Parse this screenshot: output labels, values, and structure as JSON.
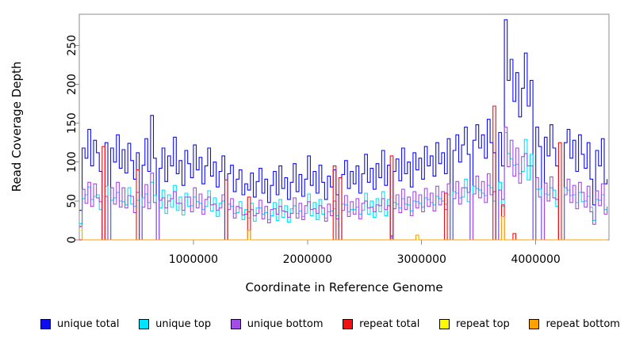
{
  "chart_data": {
    "type": "line",
    "title": "",
    "xlabel": "Coordinate in Reference Genome",
    "ylabel": "Read Coverage Depth",
    "xlim": [
      0,
      4641652
    ],
    "ylim": [
      0,
      290
    ],
    "x_ticks": [
      1000000,
      2000000,
      3000000,
      4000000
    ],
    "y_ticks": [
      0,
      50,
      100,
      150,
      200,
      250
    ],
    "grid": "off",
    "legend_position": "bottom",
    "axis_color": "#8c8c8c",
    "label_color": "#000000",
    "x_start": 0,
    "x_step": 25000,
    "n_points": 186,
    "series": [
      {
        "name": "unique total",
        "color": "#0d0df0",
        "values": [
          38,
          118,
          105,
          142,
          95,
          128,
          112,
          88,
          0,
          125,
          0,
          118,
          100,
          135,
          92,
          116,
          86,
          124,
          102,
          78,
          112,
          0,
          96,
          130,
          88,
          160,
          105,
          0,
          92,
          118,
          75,
          108,
          95,
          132,
          85,
          102,
          70,
          115,
          98,
          80,
          122,
          90,
          106,
          72,
          95,
          118,
          82,
          100,
          68,
          88,
          108,
          0,
          85,
          96,
          62,
          78,
          90,
          58,
          72,
          64,
          86,
          55,
          75,
          92,
          60,
          78,
          48,
          70,
          88,
          58,
          95,
          66,
          80,
          52,
          74,
          98,
          62,
          84,
          56,
          78,
          108,
          70,
          88,
          60,
          96,
          74,
          52,
          82,
          68,
          90,
          58,
          0,
          84,
          102,
          66,
          88,
          72,
          95,
          60,
          85,
          110,
          74,
          92,
          65,
          98,
          80,
          115,
          70,
          96,
          5,
          88,
          104,
          76,
          118,
          85,
          100,
          68,
          112,
          90,
          105,
          78,
          120,
          95,
          108,
          82,
          125,
          98,
          112,
          85,
          130,
          0,
          115,
          135,
          100,
          122,
          145,
          110,
          0,
          128,
          148,
          118,
          135,
          105,
          155,
          125,
          112,
          0,
          138,
          95,
          283,
          205,
          232,
          178,
          215,
          158,
          195,
          240,
          172,
          205,
          0,
          145,
          120,
          0,
          132,
          108,
          148,
          118,
          95,
          0,
          0,
          125,
          142,
          105,
          128,
          88,
          135,
          110,
          92,
          125,
          78,
          45,
          115,
          95,
          130,
          72,
          78
        ]
      },
      {
        "name": "unique top",
        "color": "#00e5ff",
        "values": [
          21,
          53,
          58,
          68,
          52,
          56,
          58,
          39,
          0,
          69,
          0,
          51,
          54,
          61,
          50,
          49,
          45,
          67,
          46,
          43,
          51,
          0,
          54,
          59,
          48,
          74,
          57,
          0,
          41,
          64,
          34,
          58,
          42,
          70,
          38,
          55,
          32,
          60,
          43,
          44,
          55,
          49,
          47,
          39,
          43,
          63,
          37,
          54,
          30,
          47,
          50,
          0,
          46,
          43,
          34,
          35,
          49,
          26,
          39,
          28,
          47,
          24,
          41,
          41,
          33,
          35,
          26,
          31,
          48,
          25,
          52,
          29,
          44,
          23,
          40,
          44,
          34,
          37,
          30,
          34,
          59,
          31,
          48,
          26,
          52,
          33,
          28,
          36,
          37,
          40,
          31,
          0,
          46,
          45,
          36,
          39,
          39,
          42,
          33,
          38,
          60,
          33,
          50,
          29,
          53,
          36,
          62,
          31,
          52,
          3,
          48,
          46,
          41,
          53,
          46,
          45,
          37,
          50,
          49,
          47,
          42,
          54,
          52,
          48,
          45,
          56,
          53,
          50,
          46,
          58,
          0,
          62,
          60,
          54,
          55,
          78,
          49,
          0,
          69,
          66,
          64,
          60,
          57,
          70,
          67,
          50,
          0,
          74,
          43,
          138,
          111,
          104,
          96,
          97,
          85,
          88,
          129,
          77,
          110,
          0,
          65,
          65,
          0,
          59,
          58,
          67,
          64,
          43,
          0,
          0,
          67,
          64,
          57,
          58,
          48,
          61,
          49,
          50,
          56,
          42,
          25,
          52,
          51,
          58,
          39,
          35
        ]
      },
      {
        "name": "unique bottom",
        "color": "#a44ce8",
        "values": [
          17,
          65,
          47,
          74,
          43,
          72,
          54,
          49,
          0,
          56,
          0,
          67,
          46,
          74,
          42,
          67,
          41,
          57,
          56,
          35,
          61,
          0,
          42,
          71,
          40,
          86,
          48,
          0,
          51,
          54,
          41,
          50,
          53,
          62,
          47,
          47,
          38,
          55,
          55,
          36,
          67,
          41,
          59,
          33,
          52,
          55,
          45,
          46,
          38,
          41,
          58,
          0,
          39,
          53,
          28,
          43,
          41,
          32,
          33,
          36,
          39,
          31,
          34,
          51,
          27,
          43,
          22,
          39,
          40,
          33,
          43,
          37,
          36,
          29,
          34,
          54,
          28,
          47,
          26,
          44,
          49,
          39,
          40,
          34,
          44,
          41,
          24,
          46,
          31,
          50,
          27,
          0,
          38,
          57,
          30,
          49,
          33,
          53,
          27,
          47,
          50,
          41,
          42,
          36,
          45,
          44,
          53,
          39,
          44,
          2,
          40,
          58,
          35,
          65,
          39,
          55,
          31,
          62,
          41,
          58,
          36,
          66,
          43,
          60,
          37,
          69,
          45,
          62,
          39,
          72,
          0,
          53,
          75,
          46,
          67,
          67,
          61,
          0,
          59,
          82,
          54,
          75,
          48,
          85,
          58,
          62,
          0,
          64,
          52,
          145,
          94,
          128,
          82,
          118,
          73,
          107,
          111,
          95,
          95,
          0,
          80,
          55,
          0,
          73,
          50,
          81,
          54,
          52,
          0,
          0,
          58,
          78,
          48,
          70,
          40,
          74,
          61,
          42,
          69,
          36,
          20,
          63,
          44,
          72,
          33,
          43
        ]
      },
      {
        "name": "repeat total",
        "color": "#f50f0f",
        "baseline": 0,
        "spikes": [
          [
            8,
            120
          ],
          [
            20,
            90
          ],
          [
            51,
            77
          ],
          [
            59,
            55
          ],
          [
            89,
            95
          ],
          [
            91,
            80
          ],
          [
            109,
            108
          ],
          [
            128,
            60
          ],
          [
            145,
            172
          ],
          [
            148,
            45
          ],
          [
            152,
            8
          ],
          [
            168,
            125
          ]
        ]
      },
      {
        "name": "repeat top",
        "color": "#fdfd00",
        "baseline": 0,
        "spikes": [
          [
            0,
            12
          ]
        ]
      },
      {
        "name": "repeat bottom",
        "color": "#ffa200",
        "baseline": 0,
        "spikes": [
          [
            0,
            18
          ],
          [
            59,
            12
          ],
          [
            118,
            6
          ],
          [
            148,
            30
          ]
        ]
      }
    ]
  }
}
